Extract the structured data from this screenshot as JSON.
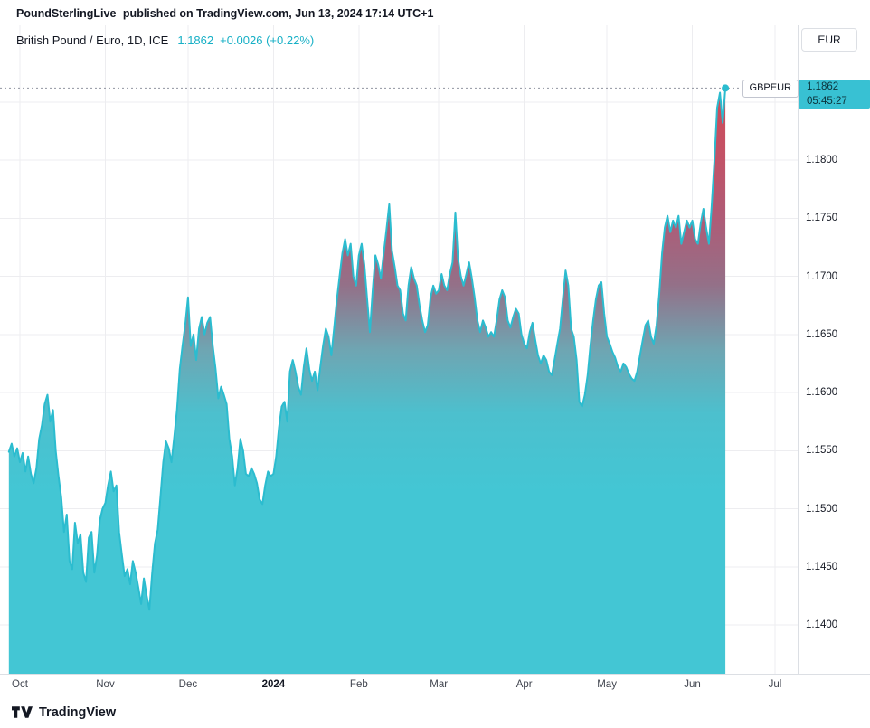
{
  "header": {
    "publisher": "PoundSterlingLive",
    "suffix": "published on TradingView.com, Jun 13, 2024 17:14 UTC+1"
  },
  "legend": {
    "symbol_title": "British Pound / Euro, 1D, ICE",
    "last_value": "1.1862",
    "change": "+0.0026 (+0.22%)"
  },
  "currency_button": {
    "label": "EUR"
  },
  "price_label": {
    "symbol": "GBPEUR",
    "price": "1.1862",
    "countdown": "05:45:27"
  },
  "footer": {
    "brand": "TradingView"
  },
  "colors": {
    "accent_line": "#2bbccf",
    "accent_text": "#17b0c6",
    "label_bg": "#38c1d3",
    "label_text": "#0c333b",
    "grid": "#ededf0",
    "axis_border": "#dcdfe4",
    "dotted_line": "#9194a0",
    "text_dark": "#131722",
    "text_axis_time": "#41454f"
  },
  "chart_data": {
    "type": "area",
    "title": "British Pound / Euro, 1D, ICE",
    "symbol": "GBPEUR",
    "exchange": "ICE",
    "interval": "1D",
    "last_price": 1.1862,
    "change": "+0.0026",
    "change_percent": "+0.22%",
    "y_range": [
      1.1358,
      1.1916
    ],
    "y_ticks": [
      1.18,
      1.175,
      1.17,
      1.165,
      1.16,
      1.155,
      1.15,
      1.145,
      1.14
    ],
    "y_gridlines": [
      1.185,
      1.18,
      1.175,
      1.17,
      1.165,
      1.16,
      1.155,
      1.15,
      1.145,
      1.14
    ],
    "x_axis": {
      "unit": "days from Oct 1 2023",
      "start_day": -4,
      "end_day": 281
    },
    "month_ticks": [
      {
        "label": "Oct",
        "day": 0
      },
      {
        "label": "Nov",
        "day": 31
      },
      {
        "label": "Dec",
        "day": 61
      },
      {
        "label": "2024",
        "day": 92,
        "bold": true
      },
      {
        "label": "Feb",
        "day": 123
      },
      {
        "label": "Mar",
        "day": 152
      },
      {
        "label": "Apr",
        "day": 183
      },
      {
        "label": "May",
        "day": 213
      },
      {
        "label": "Jun",
        "day": 244
      },
      {
        "label": "Jul",
        "day": 274
      }
    ],
    "fill_gradient": [
      {
        "offset": 0.0,
        "color": "#d4404c"
      },
      {
        "offset": 0.1,
        "color": "#cf4b59"
      },
      {
        "offset": 0.2,
        "color": "#c35266"
      },
      {
        "offset": 0.3,
        "color": "#ae5c77"
      },
      {
        "offset": 0.4,
        "color": "#947088"
      },
      {
        "offset": 0.5,
        "color": "#6fa5b2"
      },
      {
        "offset": 0.6,
        "color": "#4cc0ce"
      },
      {
        "offset": 0.72,
        "color": "#43c6d4"
      },
      {
        "offset": 1.0,
        "color": "#43c6d4"
      }
    ],
    "series": [
      {
        "name": "GBPEUR daily close",
        "start_day": -4,
        "step_days": 1,
        "values": [
          1.1549,
          1.1556,
          1.1545,
          1.1552,
          1.154,
          1.1548,
          1.1532,
          1.1545,
          1.153,
          1.1522,
          1.1535,
          1.156,
          1.1572,
          1.159,
          1.1598,
          1.1575,
          1.1585,
          1.155,
          1.1528,
          1.151,
          1.148,
          1.1495,
          1.1455,
          1.1448,
          1.1488,
          1.147,
          1.1478,
          1.1445,
          1.1437,
          1.1475,
          1.148,
          1.1445,
          1.146,
          1.149,
          1.15,
          1.1505,
          1.152,
          1.1532,
          1.1515,
          1.152,
          1.148,
          1.146,
          1.1442,
          1.1448,
          1.1435,
          1.1455,
          1.1445,
          1.1432,
          1.1418,
          1.144,
          1.1425,
          1.1413,
          1.1445,
          1.147,
          1.1482,
          1.151,
          1.154,
          1.1558,
          1.1552,
          1.154,
          1.1562,
          1.1585,
          1.162,
          1.164,
          1.1658,
          1.1682,
          1.164,
          1.165,
          1.1628,
          1.1655,
          1.1665,
          1.165,
          1.166,
          1.1665,
          1.164,
          1.162,
          1.1595,
          1.1605,
          1.1598,
          1.159,
          1.156,
          1.1545,
          1.152,
          1.1535,
          1.156,
          1.155,
          1.153,
          1.1528,
          1.1535,
          1.153,
          1.1522,
          1.1508,
          1.1504,
          1.152,
          1.1532,
          1.1528,
          1.153,
          1.1545,
          1.157,
          1.1588,
          1.1592,
          1.1575,
          1.1618,
          1.1628,
          1.1618,
          1.1605,
          1.1598,
          1.1622,
          1.1638,
          1.162,
          1.161,
          1.1618,
          1.1602,
          1.1622,
          1.164,
          1.1655,
          1.1648,
          1.1632,
          1.1655,
          1.168,
          1.17,
          1.172,
          1.1732,
          1.1718,
          1.1728,
          1.17,
          1.1692,
          1.1718,
          1.1728,
          1.171,
          1.168,
          1.1652,
          1.1688,
          1.1718,
          1.171,
          1.1698,
          1.172,
          1.174,
          1.1762,
          1.1722,
          1.1708,
          1.1692,
          1.1688,
          1.1668,
          1.1662,
          1.1692,
          1.1708,
          1.1698,
          1.1692,
          1.1675,
          1.1662,
          1.1652,
          1.1658,
          1.1682,
          1.1692,
          1.1685,
          1.1688,
          1.1702,
          1.1692,
          1.1688,
          1.1702,
          1.1712,
          1.1755,
          1.1715,
          1.17,
          1.1692,
          1.1702,
          1.1712,
          1.1698,
          1.1682,
          1.1662,
          1.1652,
          1.1662,
          1.1656,
          1.1648,
          1.1652,
          1.1648,
          1.1662,
          1.168,
          1.1688,
          1.1682,
          1.1662,
          1.1656,
          1.1665,
          1.1672,
          1.1668,
          1.165,
          1.1642,
          1.1638,
          1.1652,
          1.166,
          1.1645,
          1.1632,
          1.1625,
          1.1632,
          1.1628,
          1.1618,
          1.1615,
          1.1628,
          1.1642,
          1.1655,
          1.168,
          1.1705,
          1.1692,
          1.1655,
          1.1648,
          1.1628,
          1.1592,
          1.1588,
          1.1598,
          1.1615,
          1.164,
          1.1662,
          1.168,
          1.1692,
          1.1695,
          1.1668,
          1.1648,
          1.1642,
          1.1635,
          1.163,
          1.1622,
          1.1618,
          1.1625,
          1.1622,
          1.1616,
          1.1612,
          1.161,
          1.1618,
          1.1632,
          1.1645,
          1.1658,
          1.1662,
          1.1648,
          1.1642,
          1.1658,
          1.1685,
          1.172,
          1.1742,
          1.1752,
          1.1738,
          1.1748,
          1.1742,
          1.1752,
          1.1728,
          1.1738,
          1.1748,
          1.1742,
          1.1748,
          1.1732,
          1.1728,
          1.1745,
          1.1758,
          1.1742,
          1.1728,
          1.176,
          1.18,
          1.1845,
          1.1858,
          1.1832,
          1.1862
        ]
      }
    ]
  }
}
